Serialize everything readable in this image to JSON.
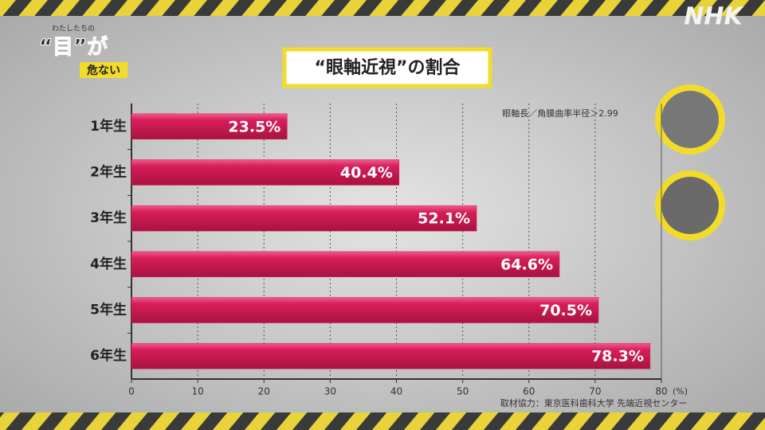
{
  "logo": "NHK",
  "corner": {
    "line1": "わたしたちの",
    "line2": "“目”が",
    "line3": "危ない"
  },
  "chart_data": {
    "type": "bar",
    "orientation": "horizontal",
    "title": "“眼軸近視”の割合",
    "note": "眼軸長／角膜曲率半径＞2.99",
    "source": "取材協力：東京医科歯科大学 先端近視センター",
    "x_unit": "(%)",
    "categories": [
      "1年生",
      "2年生",
      "3年生",
      "4年生",
      "5年生",
      "6年生"
    ],
    "values": [
      23.5,
      40.4,
      52.1,
      64.6,
      70.5,
      78.3
    ],
    "value_labels": [
      "23.5%",
      "40.4%",
      "52.1%",
      "64.6%",
      "70.5%",
      "78.3%"
    ],
    "color": "#d81e5b",
    "xlim": [
      0,
      80
    ],
    "xticks": [
      0,
      10,
      20,
      30,
      40,
      50,
      60,
      70,
      80
    ],
    "grid": true
  }
}
